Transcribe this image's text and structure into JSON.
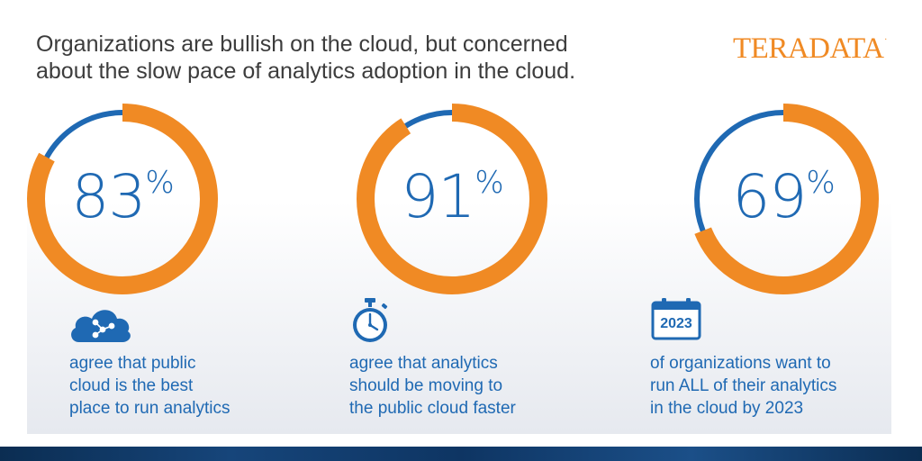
{
  "headline": {
    "line1": "Organizations are bullish on the cloud, but concerned",
    "line2": "about the slow pace of analytics adoption in the cloud."
  },
  "logo": {
    "text": "TERADATA",
    "mark": "."
  },
  "colors": {
    "accent": "#f08a24",
    "primary": "#1f69b3",
    "text": "#3c3c3c"
  },
  "stats": [
    {
      "value": "83",
      "unit": "%",
      "fraction": 0.83,
      "icon": "cloud-network-icon",
      "caption": [
        "agree that public",
        "cloud is the best",
        "place to run analytics"
      ]
    },
    {
      "value": "91",
      "unit": "%",
      "fraction": 0.91,
      "icon": "stopwatch-icon",
      "caption": [
        "agree that analytics",
        "should be moving to",
        "the public cloud faster"
      ]
    },
    {
      "value": "69",
      "unit": "%",
      "fraction": 0.69,
      "icon": "calendar-icon",
      "icon_text": "2023",
      "caption": [
        "of organizations want to",
        "run ALL of their analytics",
        "in the cloud by 2023"
      ]
    }
  ]
}
